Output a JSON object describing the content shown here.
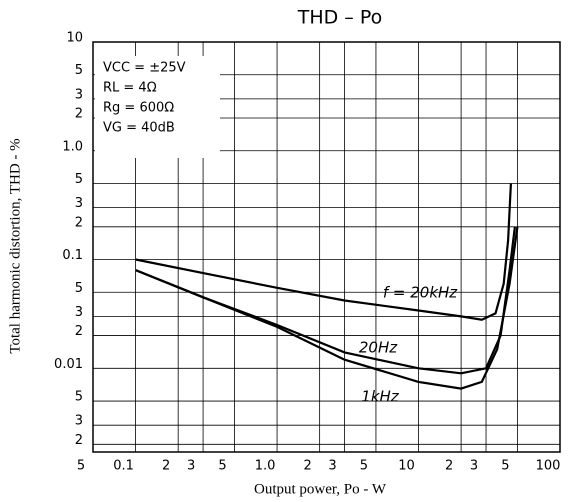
{
  "chart_data": {
    "type": "line",
    "title": "THD – Po",
    "x_label": "Output power, Po - W",
    "y_label": "Total harmonic distortion, THD - %",
    "log_x": true,
    "log_y": true,
    "grid": true,
    "xlim": [
      0.05,
      100
    ],
    "ylim": [
      0.0017,
      10
    ],
    "xticks": [
      {
        "value": 0.05,
        "label": "5"
      },
      0.1,
      {
        "value": 0.2,
        "label": "2"
      },
      {
        "value": 0.3,
        "label": "3"
      },
      {
        "value": 0.5,
        "label": "5"
      },
      {
        "value": 1,
        "label": "1.0"
      },
      {
        "value": 2,
        "label": "2"
      },
      {
        "value": 3,
        "label": "3"
      },
      {
        "value": 5,
        "label": "5"
      },
      10,
      {
        "value": 20,
        "label": "2"
      },
      {
        "value": 30,
        "label": "3"
      },
      {
        "value": 50,
        "label": "5"
      },
      100
    ],
    "yticks": [
      {
        "value": 0.002,
        "label": "2"
      },
      {
        "value": 0.003,
        "label": "3"
      },
      {
        "value": 0.005,
        "label": "5"
      },
      0.01,
      {
        "value": 0.02,
        "label": "2"
      },
      {
        "value": 0.03,
        "label": "3"
      },
      {
        "value": 0.05,
        "label": "5"
      },
      0.1,
      {
        "value": 0.2,
        "label": "2"
      },
      {
        "value": 0.3,
        "label": "3"
      },
      {
        "value": 0.5,
        "label": "5"
      },
      {
        "value": 1,
        "label": "1.0"
      },
      2,
      3,
      5,
      10
    ],
    "annotations": [
      "VCC = ±25V",
      "RL = 4Ω",
      "Rg = 600Ω",
      "VG = 40dB"
    ],
    "series": [
      {
        "name": "f = 20kHz",
        "color": "#000000",
        "x": [
          0.1,
          0.3,
          1,
          3,
          10,
          20,
          28,
          35,
          40,
          43,
          45
        ],
        "values": [
          0.1,
          0.075,
          0.055,
          0.042,
          0.034,
          0.03,
          0.028,
          0.032,
          0.06,
          0.15,
          0.5
        ]
      },
      {
        "name": "20Hz",
        "color": "#000000",
        "x": [
          0.1,
          0.3,
          1,
          3,
          10,
          20,
          30,
          38,
          44,
          48
        ],
        "values": [
          0.08,
          0.045,
          0.025,
          0.014,
          0.01,
          0.009,
          0.01,
          0.02,
          0.08,
          0.2
        ]
      },
      {
        "name": "1kHz",
        "color": "#000000",
        "x": [
          0.1,
          0.3,
          1,
          3,
          10,
          20,
          28,
          36,
          44,
          50
        ],
        "values": [
          0.08,
          0.045,
          0.024,
          0.012,
          0.0075,
          0.0065,
          0.0075,
          0.015,
          0.06,
          0.2
        ]
      }
    ]
  }
}
